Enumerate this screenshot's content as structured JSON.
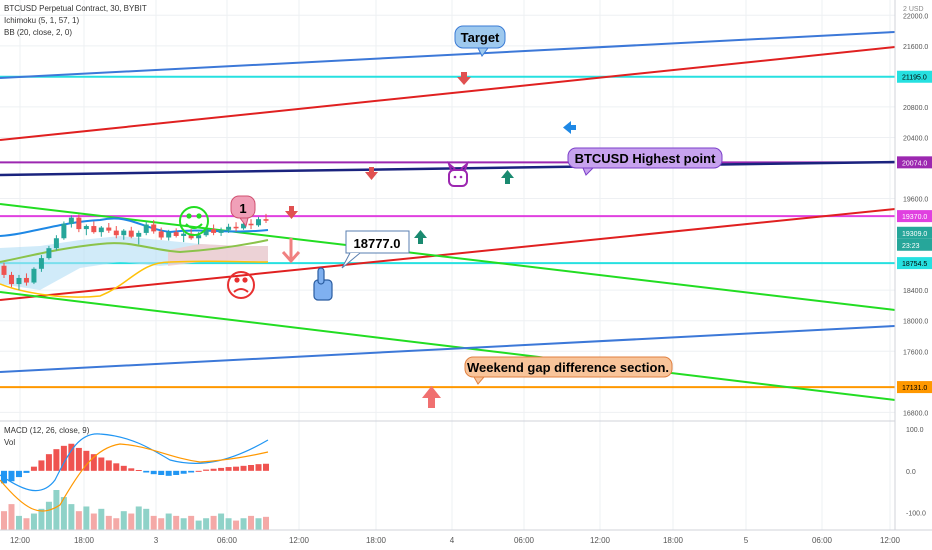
{
  "legend": {
    "symbol": "BTCUSD Perpetual Contract, 30, BYBIT",
    "ichimoku": "Ichimoku (5, 1, 57, 1)",
    "bb": "BB (20, close, 2, 0)"
  },
  "macd_pane": {
    "label": "MACD (12, 26, close, 9)",
    "vol_label": "Vol"
  },
  "currency_tag": "2 USD",
  "price_axis_ticks": [
    "22000.0",
    "21600.0",
    "20800.0",
    "20400.0",
    "19600.0",
    "18400.0",
    "18000.0",
    "17600.0",
    "16800.0"
  ],
  "price_axis_tags": [
    {
      "text": "21195.0",
      "color": "#26e0e0"
    },
    {
      "text": "20074.0",
      "color": "#9c27b0"
    },
    {
      "text": "19370.0",
      "color": "#e040e0"
    },
    {
      "text": "19309.0",
      "color": "#26a69a"
    },
    {
      "text": "23:23",
      "color": "#26a69a"
    },
    {
      "text": "18754.5",
      "color": "#26e0e0"
    },
    {
      "text": "17131.0",
      "color": "#ff9800"
    }
  ],
  "macd_axis_ticks": [
    "100.0",
    "0.0",
    "-100.0"
  ],
  "time_axis_ticks": [
    "12:00",
    "18:00",
    "3",
    "06:00",
    "12:00",
    "18:00",
    "4",
    "06:00",
    "12:00",
    "18:00",
    "5",
    "06:00",
    "12:00"
  ],
  "annotations": {
    "target": "Target",
    "highest": "BTCUSD Highest point",
    "weekend": "Weekend gap difference section.",
    "price_box": "18777.0",
    "number_marker": "1"
  },
  "colors": {
    "up": "#26a69a",
    "down": "#ef5350",
    "cyan": "#26e0e0",
    "purple": "#9c27b0",
    "magenta": "#e040e0",
    "orange": "#ff9800",
    "trend_blue": "#3c78d8",
    "trend_red": "#e02020",
    "trend_green": "#22dd22",
    "navy": "#1a237e",
    "bubble_blue": "#9ec9ee",
    "bubble_purple": "#c7a2ee",
    "bubble_orange": "#f8c49a",
    "bubble_pink": "#f0a0b8"
  },
  "chart_data": {
    "type": "candlestick",
    "y_range": [
      16700,
      22200
    ],
    "horizontal_levels": [
      {
        "price": 21195.0,
        "color": "#26e0e0"
      },
      {
        "price": 20074.0,
        "color": "#9c27b0"
      },
      {
        "price": 19370.0,
        "color": "#e040e0"
      },
      {
        "price": 18754.5,
        "color": "#26e0e0"
      },
      {
        "price": 17131.0,
        "color": "#ff9800"
      }
    ],
    "last_price": 19309.0,
    "candles": [
      [
        18720,
        18760,
        18560,
        18600
      ],
      [
        18600,
        18640,
        18440,
        18480
      ],
      [
        18480,
        18600,
        18400,
        18560
      ],
      [
        18560,
        18620,
        18460,
        18500
      ],
      [
        18500,
        18700,
        18480,
        18680
      ],
      [
        18680,
        18860,
        18640,
        18820
      ],
      [
        18820,
        18980,
        18800,
        18950
      ],
      [
        18950,
        19120,
        18920,
        19080
      ],
      [
        19080,
        19300,
        19060,
        19270
      ],
      [
        19270,
        19380,
        19220,
        19350
      ],
      [
        19350,
        19390,
        19160,
        19200
      ],
      [
        19200,
        19260,
        19120,
        19240
      ],
      [
        19240,
        19300,
        19140,
        19160
      ],
      [
        19160,
        19240,
        19100,
        19220
      ],
      [
        19220,
        19280,
        19150,
        19180
      ],
      [
        19180,
        19240,
        19080,
        19120
      ],
      [
        19120,
        19200,
        19060,
        19180
      ],
      [
        19180,
        19230,
        19080,
        19100
      ],
      [
        19100,
        19180,
        19000,
        19150
      ],
      [
        19150,
        19300,
        19120,
        19260
      ],
      [
        19260,
        19320,
        19140,
        19170
      ],
      [
        19170,
        19220,
        19060,
        19090
      ],
      [
        19090,
        19190,
        19050,
        19160
      ],
      [
        19160,
        19210,
        19090,
        19110
      ],
      [
        19110,
        19180,
        19030,
        19140
      ],
      [
        19140,
        19200,
        19060,
        19080
      ],
      [
        19080,
        19160,
        19000,
        19120
      ],
      [
        19120,
        19230,
        19100,
        19200
      ],
      [
        19200,
        19260,
        19120,
        19150
      ],
      [
        19150,
        19220,
        19110,
        19190
      ],
      [
        19190,
        19270,
        19150,
        19230
      ],
      [
        19230,
        19290,
        19170,
        19210
      ],
      [
        19210,
        19300,
        19190,
        19270
      ],
      [
        19270,
        19330,
        19200,
        19250
      ],
      [
        19250,
        19360,
        19230,
        19330
      ],
      [
        19330,
        19400,
        19280,
        19309
      ]
    ],
    "macd": {
      "histogram": [
        -30,
        -25,
        -15,
        -5,
        10,
        25,
        40,
        52,
        60,
        65,
        55,
        48,
        40,
        32,
        25,
        18,
        12,
        6,
        2,
        -4,
        -8,
        -10,
        -12,
        -10,
        -7,
        -4,
        0,
        3,
        5,
        7,
        9,
        10,
        12,
        14,
        16,
        17
      ],
      "y_range": [
        -130,
        110
      ]
    },
    "volume": [
      40,
      55,
      30,
      25,
      35,
      45,
      60,
      85,
      70,
      55,
      40,
      50,
      35,
      45,
      30,
      25,
      40,
      35,
      50,
      45,
      30,
      25,
      35,
      30,
      25,
      30,
      20,
      25,
      30,
      35,
      25,
      20,
      25,
      30,
      25,
      28
    ]
  }
}
